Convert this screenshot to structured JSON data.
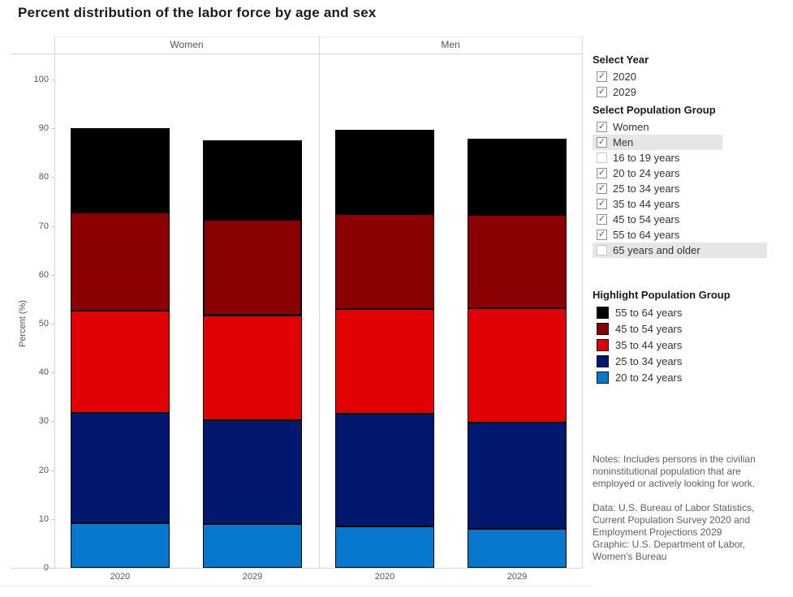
{
  "title": "Percent distribution of the labor force by age and sex",
  "chart_data": {
    "type": "bar",
    "stacked": true,
    "panels": [
      "Women",
      "Men"
    ],
    "x_categories": [
      "2020",
      "2029"
    ],
    "ylabel": "Percent (%)",
    "ylim": [
      0,
      100
    ],
    "yticks": [
      0,
      10,
      20,
      30,
      40,
      50,
      60,
      70,
      80,
      90,
      100
    ],
    "segments_order": [
      "20 to 24 years",
      "25 to 34 years",
      "35 to 44 years",
      "45 to 54 years",
      "55 to 64 years"
    ],
    "colors": {
      "20 to 24 years": "#0878CE",
      "25 to 34 years": "#02176E",
      "35 to 44 years": "#E00204",
      "45 to 54 years": "#8B0000",
      "55 to 64 years": "#000000"
    },
    "bars": [
      {
        "panel": "Women",
        "year": "2020",
        "values": {
          "20 to 24 years": 9.2,
          "25 to 34 years": 22.6,
          "35 to 44 years": 20.9,
          "45 to 54 years": 20.0,
          "55 to 64 years": 17.3
        }
      },
      {
        "panel": "Women",
        "year": "2029",
        "values": {
          "20 to 24 years": 9.0,
          "25 to 34 years": 21.3,
          "35 to 44 years": 21.4,
          "45 to 54 years": 19.8,
          "55 to 64 years": 16.1
        }
      },
      {
        "panel": "Men",
        "year": "2020",
        "values": {
          "20 to 24 years": 8.4,
          "25 to 34 years": 23.1,
          "35 to 44 years": 21.5,
          "45 to 54 years": 19.5,
          "55 to 64 years": 17.2
        }
      },
      {
        "panel": "Men",
        "year": "2029",
        "values": {
          "20 to 24 years": 7.9,
          "25 to 34 years": 21.9,
          "35 to 44 years": 23.4,
          "45 to 54 years": 19.1,
          "55 to 64 years": 15.5
        }
      }
    ],
    "highlight": {
      "panel": "Women",
      "year": "2029",
      "segment": "45 to 54 years"
    },
    "legend_position": "right",
    "grid": false
  },
  "controls": {
    "check_glyph": "✓",
    "select_year": {
      "label": "Select Year",
      "options": [
        {
          "label": "2020",
          "checked": true,
          "highlighted": false
        },
        {
          "label": "2029",
          "checked": true,
          "highlighted": false
        }
      ]
    },
    "select_population_group": {
      "label": "Select Population Group",
      "options": [
        {
          "label": "Women",
          "checked": true,
          "highlighted": false
        },
        {
          "label": "Men",
          "checked": true,
          "highlighted": true,
          "highlight_width": 160
        },
        {
          "label": "16 to 19 years",
          "checked": false,
          "highlighted": false
        },
        {
          "label": "20 to 24 years",
          "checked": true,
          "highlighted": false
        },
        {
          "label": "25 to 34 years",
          "checked": true,
          "highlighted": false
        },
        {
          "label": "35 to 44 years",
          "checked": true,
          "highlighted": false
        },
        {
          "label": "45 to 54 years",
          "checked": true,
          "highlighted": false
        },
        {
          "label": "55 to 64 years",
          "checked": true,
          "highlighted": false
        },
        {
          "label": "65 years and older",
          "checked": false,
          "highlighted": true,
          "highlight_width": 215
        }
      ]
    },
    "highlight_population_group": {
      "label": "Highlight Population Group",
      "items": [
        {
          "label": "55 to 64 years",
          "color": "#000000"
        },
        {
          "label": "45 to 54 years",
          "color": "#8B0000"
        },
        {
          "label": "35 to 44 years",
          "color": "#E00204"
        },
        {
          "label": "25 to 34 years",
          "color": "#02176E"
        },
        {
          "label": "20 to 24 years",
          "color": "#0878CE"
        }
      ]
    }
  },
  "notes": {
    "notes": "Notes: Includes persons in the civilian noninstitutional population that are employed or actively looking for work.",
    "data_source": "Data: U.S. Bureau of Labor Statistics, Current Population Survey 2020 and Employment Projections 2029",
    "graphic_source": "Graphic: U.S. Department of Labor, Women's Bureau"
  }
}
